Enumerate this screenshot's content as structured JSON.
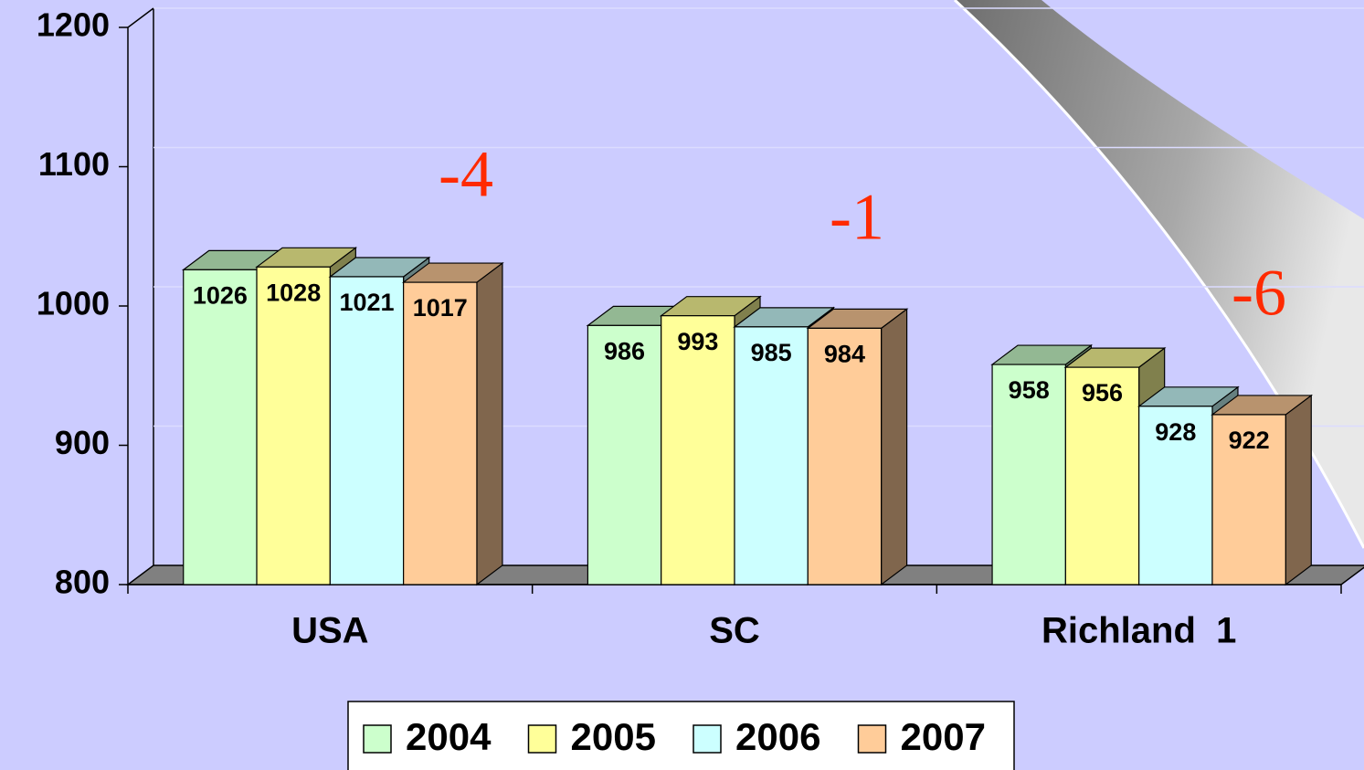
{
  "chart_data": {
    "type": "bar3d",
    "categories": [
      "USA",
      "SC",
      "Richland  1"
    ],
    "series": [
      {
        "name": "2004",
        "color": "#ccffcc",
        "values": [
          1026,
          986,
          958
        ]
      },
      {
        "name": "2005",
        "color": "#ffff99",
        "values": [
          1028,
          993,
          956
        ]
      },
      {
        "name": "2006",
        "color": "#ccffff",
        "values": [
          1021,
          985,
          928
        ]
      },
      {
        "name": "2007",
        "color": "#ffcc99",
        "values": [
          1017,
          984,
          922
        ]
      }
    ],
    "ylim": [
      800,
      1200
    ],
    "yticks": [
      800,
      900,
      1000,
      1100,
      1200
    ],
    "grid": true,
    "annotations": [
      "-4",
      "-1",
      "-6"
    ],
    "legend": "bottom"
  }
}
